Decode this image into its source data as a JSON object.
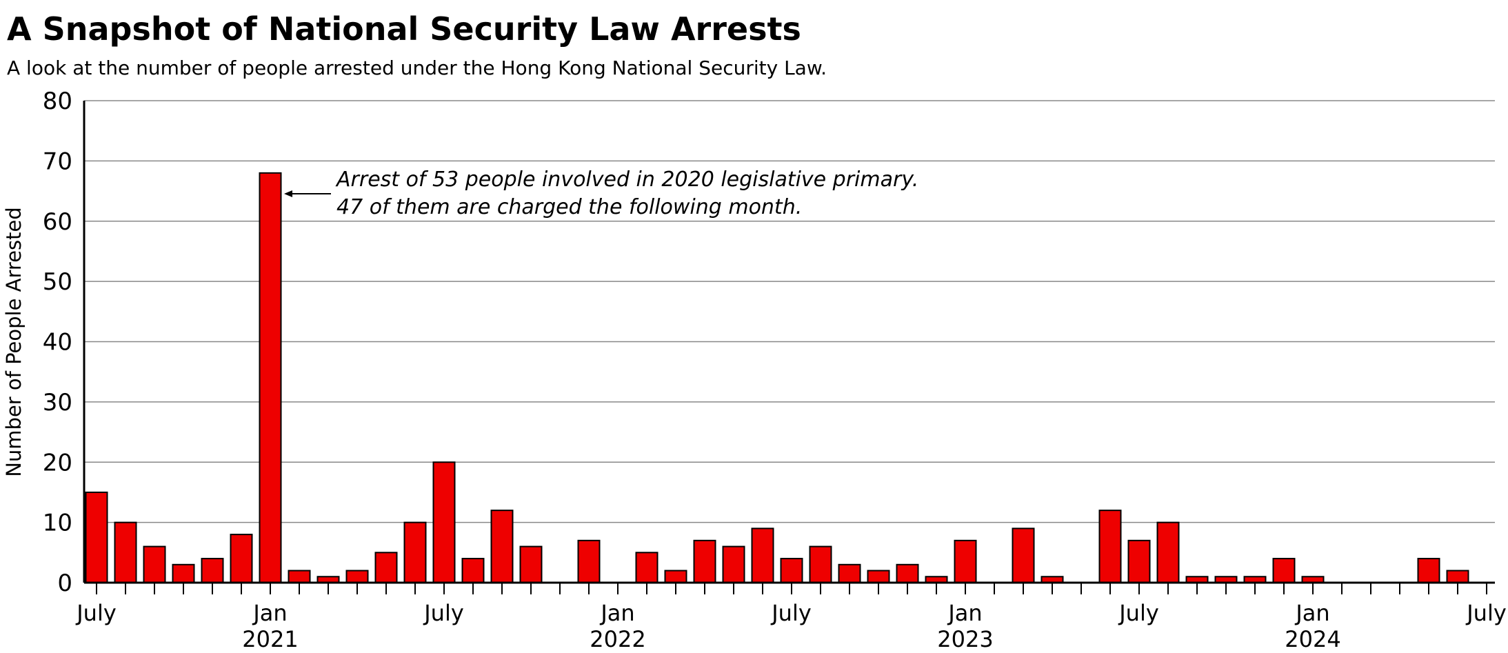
{
  "title": "A Snapshot of National Security Law Arrests",
  "subtitle": "A look at the number of people arrested under the Hong Kong National Security Law.",
  "chart_data": {
    "type": "bar",
    "title": "A Snapshot of National Security Law Arrests",
    "subtitle": "A look at the number of people arrested under the Hong Kong National Security Law.",
    "xlabel": "",
    "ylabel": "Number of People Arrested",
    "ylim": [
      0,
      80
    ],
    "yticks": [
      "0",
      "10",
      "20",
      "30",
      "40",
      "50",
      "60",
      "70",
      "80"
    ],
    "grid": true,
    "bar_color": "#EE0000",
    "categories": [
      "2020-07",
      "2020-08",
      "2020-09",
      "2020-10",
      "2020-11",
      "2020-12",
      "2021-01",
      "2021-02",
      "2021-03",
      "2021-04",
      "2021-05",
      "2021-06",
      "2021-07",
      "2021-08",
      "2021-09",
      "2021-10",
      "2021-11",
      "2021-12",
      "2022-01",
      "2022-02",
      "2022-03",
      "2022-04",
      "2022-05",
      "2022-06",
      "2022-07",
      "2022-08",
      "2022-09",
      "2022-10",
      "2022-11",
      "2022-12",
      "2023-01",
      "2023-02",
      "2023-03",
      "2023-04",
      "2023-05",
      "2023-06",
      "2023-07",
      "2023-08",
      "2023-09",
      "2023-10",
      "2023-11",
      "2023-12",
      "2024-01",
      "2024-02",
      "2024-03",
      "2024-04",
      "2024-05",
      "2024-06",
      "2024-07"
    ],
    "values": [
      15,
      10,
      6,
      3,
      4,
      8,
      68,
      2,
      1,
      2,
      5,
      10,
      20,
      4,
      12,
      6,
      0,
      7,
      0,
      5,
      2,
      7,
      6,
      9,
      4,
      6,
      3,
      2,
      3,
      1,
      7,
      0,
      9,
      1,
      0,
      12,
      7,
      10,
      1,
      1,
      1,
      4,
      1,
      0,
      0,
      0,
      4,
      2,
      0
    ],
    "xtick_labels": [
      {
        "month_index": 0,
        "line1": "July",
        "line2": ""
      },
      {
        "month_index": 6,
        "line1": "Jan",
        "line2": "2021"
      },
      {
        "month_index": 12,
        "line1": "July",
        "line2": ""
      },
      {
        "month_index": 18,
        "line1": "Jan",
        "line2": "2022"
      },
      {
        "month_index": 24,
        "line1": "July",
        "line2": ""
      },
      {
        "month_index": 30,
        "line1": "Jan",
        "line2": "2023"
      },
      {
        "month_index": 36,
        "line1": "July",
        "line2": ""
      },
      {
        "month_index": 42,
        "line1": "Jan",
        "line2": "2024"
      },
      {
        "month_index": 48,
        "line1": "July",
        "line2": ""
      }
    ],
    "annotation": {
      "target_category": "2021-01",
      "line1": "Arrest of 53 people involved in 2020 legislative primary.",
      "line2": "47 of them are charged the following month."
    }
  }
}
